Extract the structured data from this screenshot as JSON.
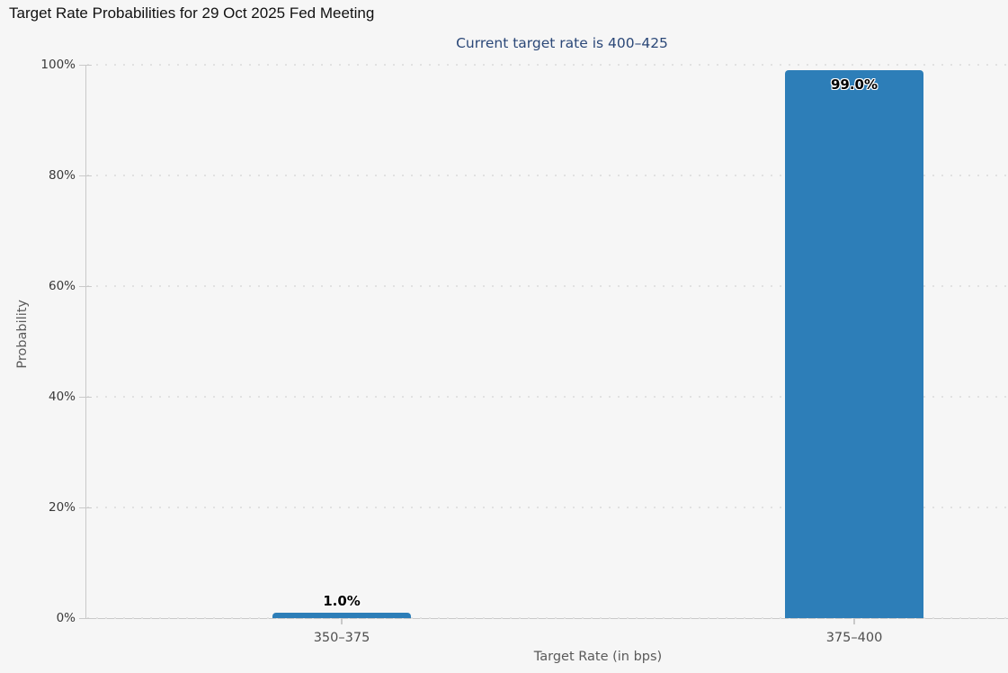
{
  "header": {
    "title": "Target Rate Probabilities for 29 Oct 2025 Fed Meeting",
    "subtitle": "Current target rate is 400–425"
  },
  "colors": {
    "background": "#f6f6f6",
    "bar_fill": "#2d7eb8",
    "title_text": "#111111",
    "subtitle_text": "#2b4878",
    "axis_line": "#c9c9c9",
    "gridline_dot": "#e1e1e1",
    "tick_text": "#3a3a3a",
    "axis_title_text": "#5a5a5a",
    "bar_label_text": "#000000",
    "bar_label_halo": "#ffffff"
  },
  "chart_data": {
    "type": "bar",
    "title": "Target Rate Probabilities for 29 Oct 2025 Fed Meeting",
    "subtitle": "Current target rate is 400–425",
    "xlabel": "Target Rate (in bps)",
    "ylabel": "Probability",
    "categories": [
      "350–375",
      "375–400"
    ],
    "values": [
      1.0,
      99.0
    ],
    "value_labels": [
      "1.0%",
      "99.0%"
    ],
    "ylim": [
      0,
      100
    ],
    "ytick_values": [
      0,
      20,
      40,
      60,
      80,
      100
    ],
    "ytick_labels": [
      "0%",
      "20%",
      "40%",
      "60%",
      "80%",
      "100%"
    ],
    "grid": "horizontal-dotted",
    "legend": "none",
    "bar_color": "#2d7eb8"
  }
}
